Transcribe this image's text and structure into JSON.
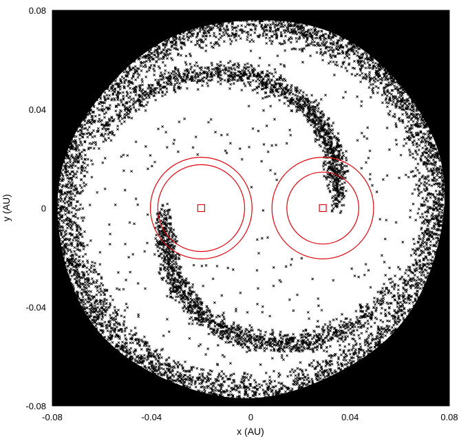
{
  "chart_data": {
    "type": "scatter",
    "title": "",
    "xlabel": "x (AU)",
    "ylabel": "y (AU)",
    "xlim": [
      -0.08,
      0.08
    ],
    "ylim": [
      -0.08,
      0.08
    ],
    "xticks": [
      -0.08,
      -0.04,
      0,
      0.04,
      0.08
    ],
    "xtick_labels": [
      "-0.08",
      "-0.04",
      "0",
      "0.04",
      "0.08"
    ],
    "yticks": [
      -0.08,
      -0.04,
      0,
      0.04,
      0.08
    ],
    "ytick_labels": [
      "-0.08",
      "-0.04",
      "0",
      "0.04",
      "0.08"
    ],
    "grid": false,
    "legend": "none",
    "particle_marker": "x",
    "particle_color": "#000000",
    "orbit_color": "#e0000a",
    "particle_distribution": {
      "description_of_density": "dense ring",
      "dense_outer_radius": 0.079,
      "dense_inner_radius": 0.066,
      "sparse_inner_radius": 0.04,
      "spiral_arms": 2
    },
    "stars": [
      {
        "x": -0.02,
        "y": 0.0,
        "marker": "square",
        "circle_radii": [
          0.0205,
          0.0175
        ]
      },
      {
        "x": 0.029,
        "y": 0.0,
        "marker": "square",
        "circle_radii": [
          0.0205,
          0.0145
        ]
      }
    ]
  }
}
